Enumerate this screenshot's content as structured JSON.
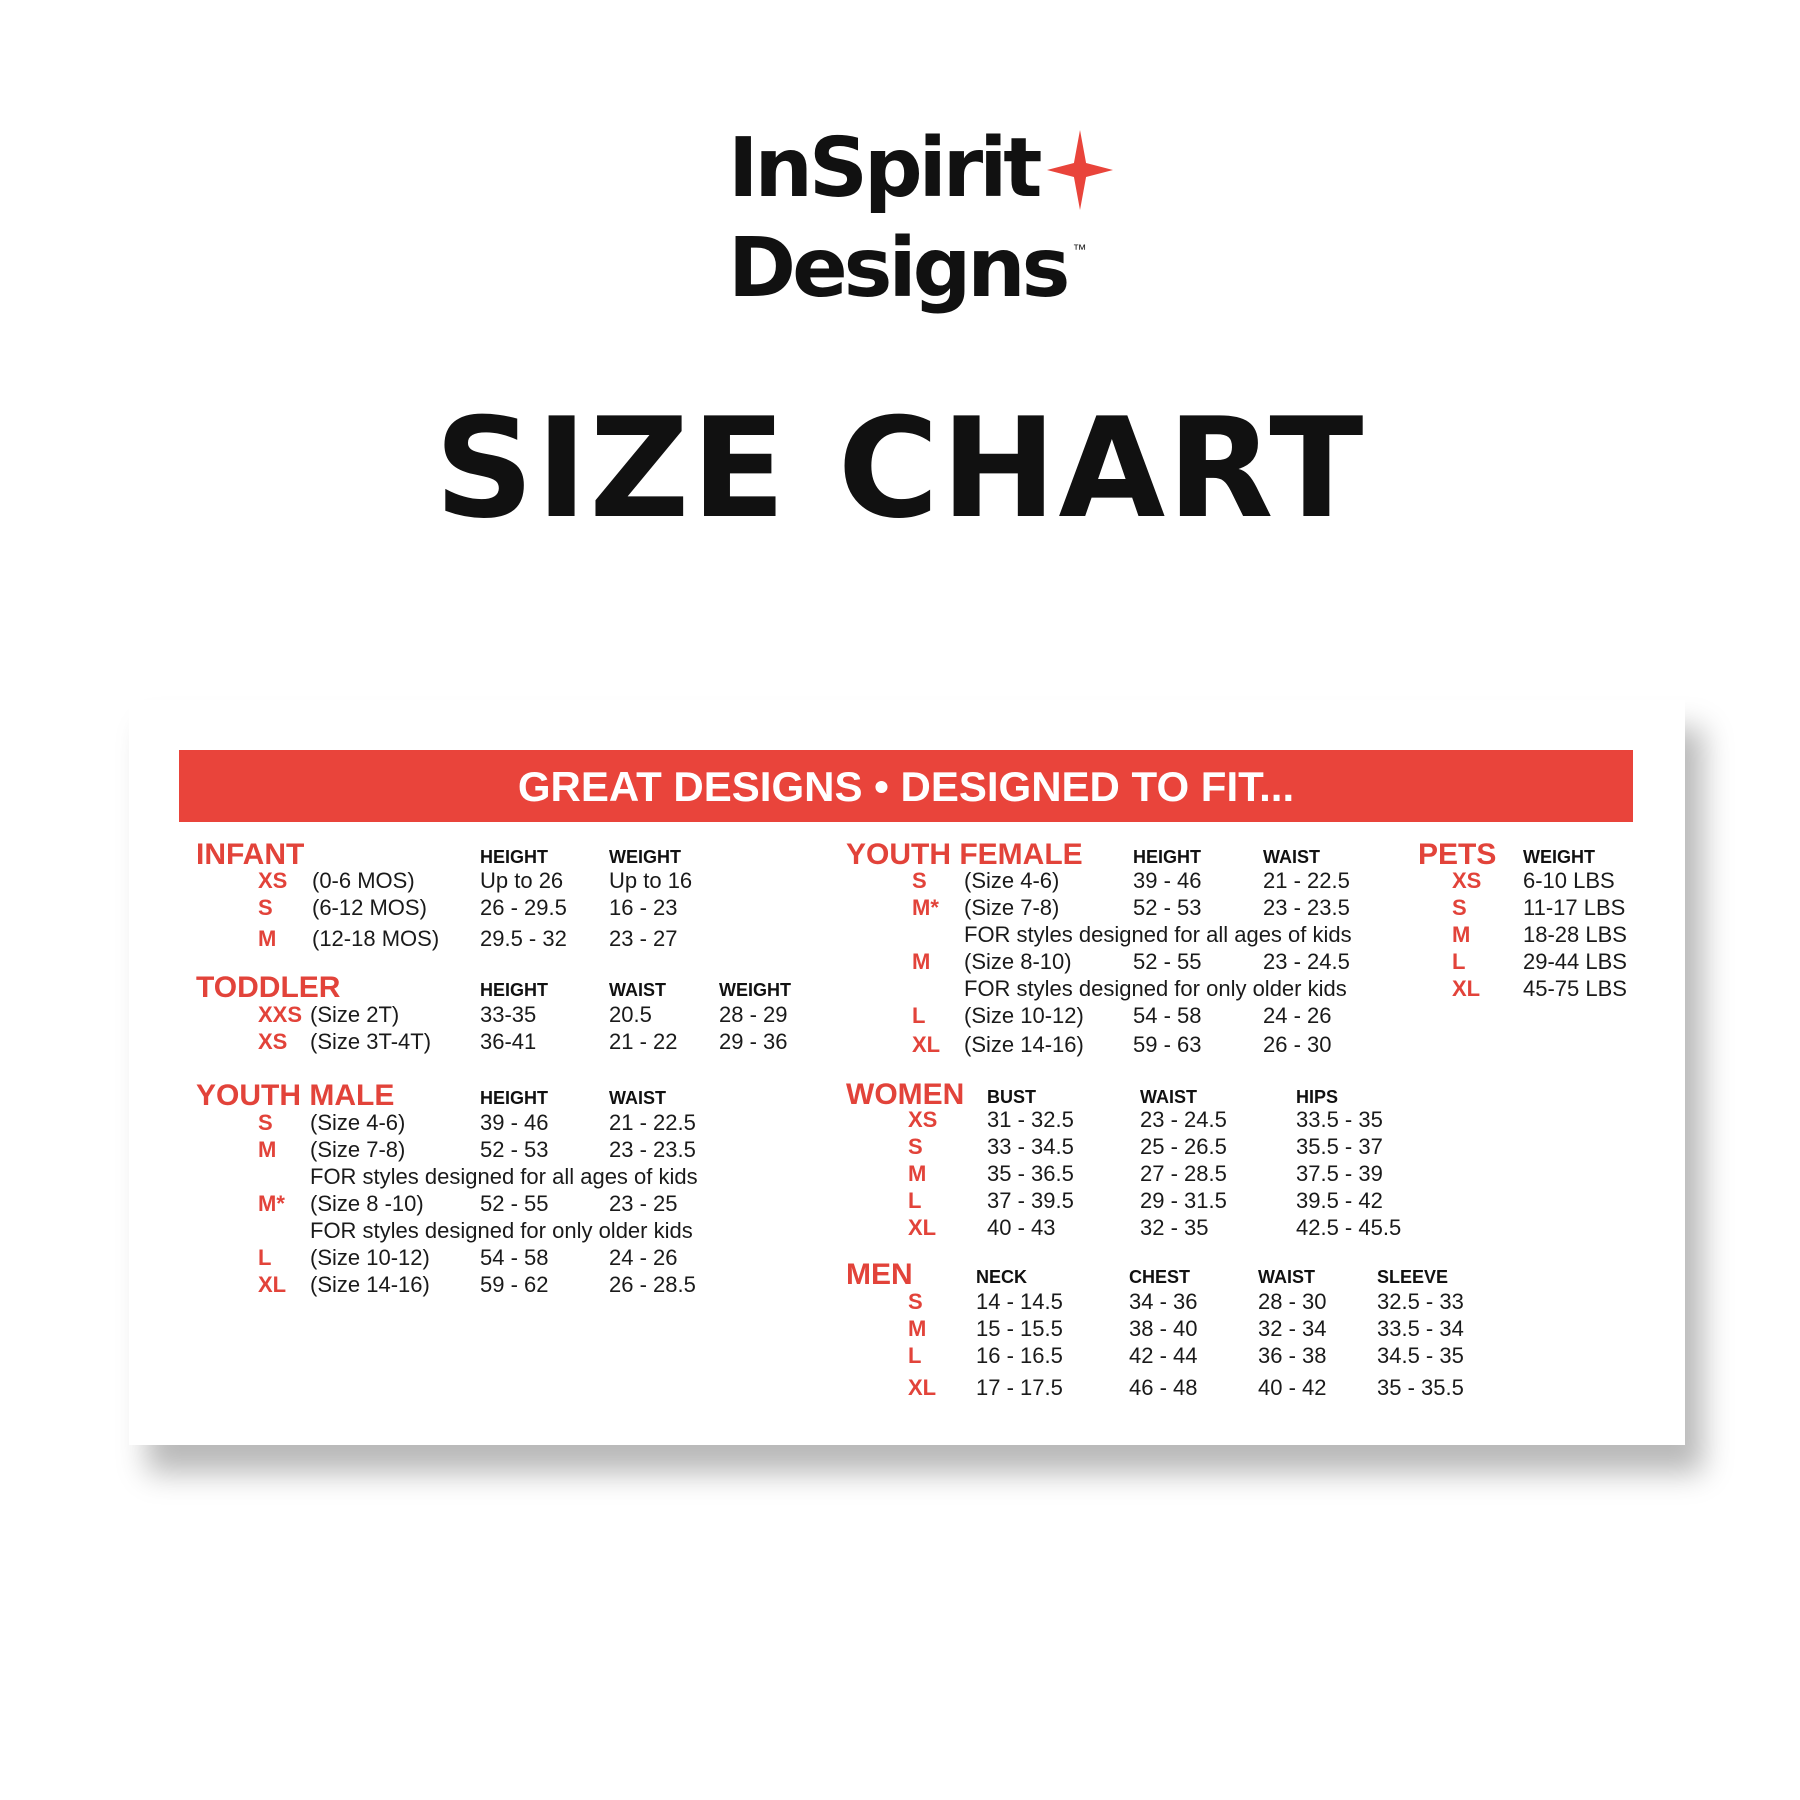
{
  "logo": {
    "line1": "InSpirit",
    "line2": "Designs",
    "trademark": "™",
    "star_color": "#e9443b"
  },
  "title": "SIZE CHART",
  "banner": "GREAT DESIGNS • DESIGNED TO FIT...",
  "colors": {
    "accent": "#e9443b",
    "text": "#1a1a1a"
  },
  "sections": [
    {
      "title": "INFANT",
      "headers": [
        "HEIGHT",
        "WEIGHT"
      ],
      "rows": [
        {
          "code": "XS",
          "desc": "(0-6 MOS)",
          "values": [
            "Up to 26",
            "Up to 16"
          ]
        },
        {
          "code": "S",
          "desc": "(6-12 MOS)",
          "values": [
            "26 - 29.5",
            "16 - 23"
          ]
        },
        {
          "code": "M",
          "desc": "(12-18 MOS)",
          "values": [
            "29.5 - 32",
            "23 - 27"
          ]
        }
      ]
    },
    {
      "title": "TODDLER",
      "headers": [
        "HEIGHT",
        "WAIST",
        "WEIGHT"
      ],
      "rows": [
        {
          "code": "XXS",
          "desc": "(Size 2T)",
          "values": [
            "33-35",
            "20.5",
            "28 - 29"
          ]
        },
        {
          "code": "XS",
          "desc": "(Size 3T-4T)",
          "values": [
            "36-41",
            "21 - 22",
            "29 - 36"
          ]
        }
      ]
    },
    {
      "title": "YOUTH MALE",
      "headers": [
        "HEIGHT",
        "WAIST"
      ],
      "rows": [
        {
          "code": "S",
          "desc": "(Size 4-6)",
          "values": [
            "39 - 46",
            "21 - 22.5"
          ]
        },
        {
          "code": "M",
          "desc": "(Size 7-8)",
          "values": [
            "52 - 53",
            "23 - 23.5"
          ]
        },
        {
          "note": "FOR styles designed for all ages of kids"
        },
        {
          "code": "M*",
          "desc": "(Size 8 -10)",
          "values": [
            "52 - 55",
            "23 - 25"
          ]
        },
        {
          "note": "FOR styles designed for only older kids"
        },
        {
          "code": "L",
          "desc": "(Size 10-12)",
          "values": [
            "54 - 58",
            "24 - 26"
          ]
        },
        {
          "code": "XL",
          "desc": "(Size 14-16)",
          "values": [
            "59 - 62",
            "26 - 28.5"
          ]
        }
      ]
    },
    {
      "title": "YOUTH FEMALE",
      "headers": [
        "HEIGHT",
        "WAIST"
      ],
      "rows": [
        {
          "code": "S",
          "desc": "(Size 4-6)",
          "values": [
            "39 - 46",
            "21 - 22.5"
          ]
        },
        {
          "code": "M*",
          "desc": "(Size 7-8)",
          "values": [
            "52 - 53",
            "23 - 23.5"
          ]
        },
        {
          "note": "FOR styles designed for all ages of kids"
        },
        {
          "code": "M",
          "desc": "(Size 8-10)",
          "values": [
            "52 - 55",
            "23 - 24.5"
          ]
        },
        {
          "note": "FOR styles designed for only older kids"
        },
        {
          "code": "L",
          "desc": "(Size 10-12)",
          "values": [
            "54 - 58",
            "24 - 26"
          ]
        },
        {
          "code": "XL",
          "desc": "(Size 14-16)",
          "values": [
            "59 - 63",
            "26 - 30"
          ]
        }
      ]
    },
    {
      "title": "WOMEN",
      "headers": [
        "BUST",
        "WAIST",
        "HIPS"
      ],
      "rows": [
        {
          "code": "XS",
          "values": [
            "31 - 32.5",
            "23 - 24.5",
            "33.5 - 35"
          ]
        },
        {
          "code": "S",
          "values": [
            "33 - 34.5",
            "25 - 26.5",
            "35.5 - 37"
          ]
        },
        {
          "code": "M",
          "values": [
            "35 - 36.5",
            "27 - 28.5",
            "37.5 - 39"
          ]
        },
        {
          "code": "L",
          "values": [
            "37 - 39.5",
            "29 - 31.5",
            "39.5 - 42"
          ]
        },
        {
          "code": "XL",
          "values": [
            "40 - 43",
            "32 - 35",
            "42.5 - 45.5"
          ]
        }
      ]
    },
    {
      "title": "MEN",
      "headers": [
        "NECK",
        "CHEST",
        "WAIST",
        "SLEEVE"
      ],
      "rows": [
        {
          "code": "S",
          "values": [
            "14 - 14.5",
            "34 - 36",
            "28 - 30",
            "32.5 - 33"
          ]
        },
        {
          "code": "M",
          "values": [
            "15 - 15.5",
            "38 - 40",
            "32 - 34",
            "33.5 - 34"
          ]
        },
        {
          "code": "L",
          "values": [
            "16 - 16.5",
            "42 - 44",
            "36 - 38",
            "34.5 - 35"
          ]
        },
        {
          "code": "XL",
          "values": [
            "17 - 17.5",
            "46 - 48",
            "40 - 42",
            "35 - 35.5"
          ]
        }
      ]
    },
    {
      "title": "PETS",
      "headers": [
        "WEIGHT"
      ],
      "rows": [
        {
          "code": "XS",
          "values": [
            "6-10 LBS"
          ]
        },
        {
          "code": "S",
          "values": [
            "11-17 LBS"
          ]
        },
        {
          "code": "M",
          "values": [
            "18-28 LBS"
          ]
        },
        {
          "code": "L",
          "values": [
            "29-44 LBS"
          ]
        },
        {
          "code": "XL",
          "values": [
            "45-75 LBS"
          ]
        }
      ]
    }
  ]
}
